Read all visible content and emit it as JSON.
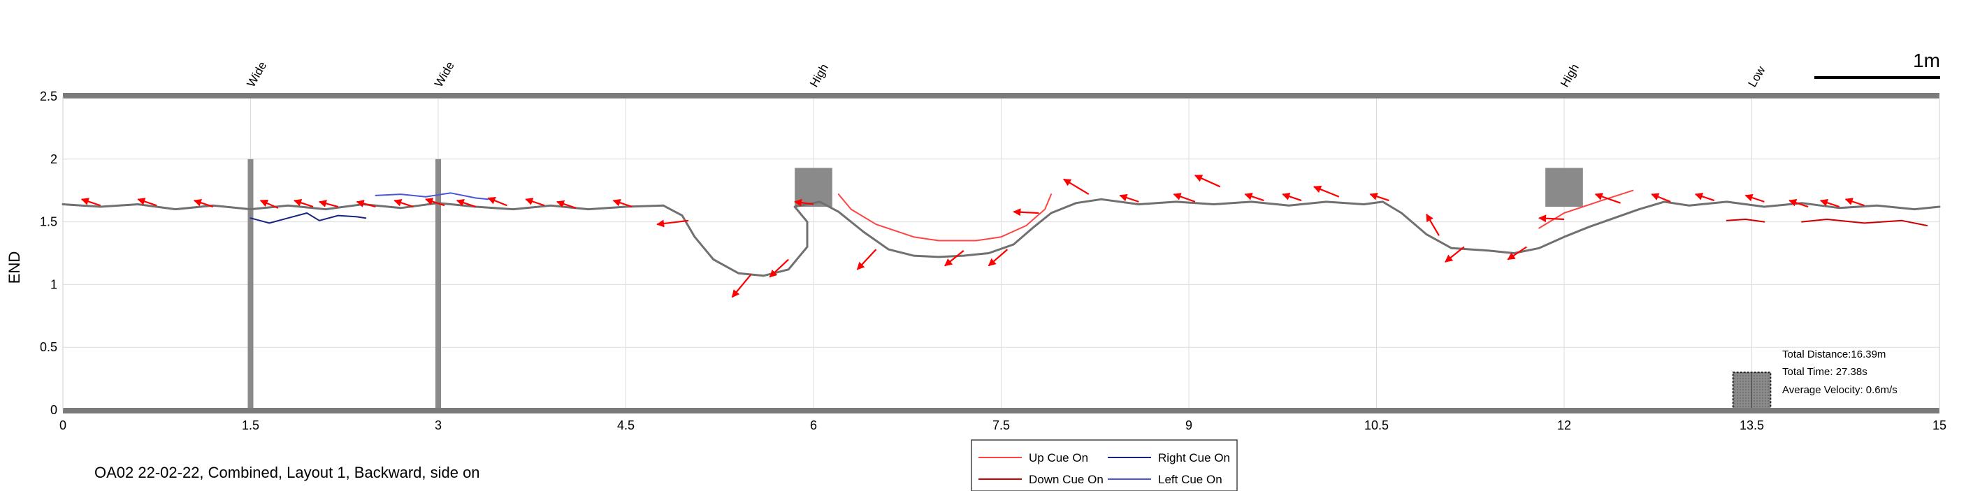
{
  "chart_data": {
    "type": "line",
    "title": "",
    "xlabel": "",
    "ylabel": "END",
    "xlim": [
      0,
      15
    ],
    "ylim": [
      0,
      2.5
    ],
    "xticks": [
      "0",
      "1.5",
      "3",
      "4.5",
      "6",
      "7.5",
      "9",
      "10.5",
      "12",
      "13.5",
      "15"
    ],
    "yticks": [
      "0",
      "0.5",
      "1",
      "1.5",
      "2",
      "2.5"
    ],
    "grid": true,
    "obstacles": [
      {
        "label": "Wide",
        "x": 1.5,
        "kind": "pole",
        "ymin": 0,
        "ymax": 2.0
      },
      {
        "label": "Wide",
        "x": 3.0,
        "kind": "pole",
        "ymin": 0,
        "ymax": 2.0
      },
      {
        "label": "High",
        "x": 6.0,
        "kind": "block",
        "xmin": 5.85,
        "xmax": 6.15,
        "ymin": 1.62,
        "ymax": 1.93
      },
      {
        "label": "High",
        "x": 12.0,
        "kind": "block",
        "xmin": 11.85,
        "xmax": 12.15,
        "ymin": 1.62,
        "ymax": 1.93
      },
      {
        "label": "Low",
        "x": 13.5,
        "kind": "low-block",
        "xmin": 13.35,
        "xmax": 13.65,
        "ymin": 0,
        "ymax": 0.3
      }
    ],
    "series": [
      {
        "name": "",
        "color": "#707070",
        "points": [
          [
            0,
            1.64
          ],
          [
            0.3,
            1.62
          ],
          [
            0.6,
            1.64
          ],
          [
            0.9,
            1.6
          ],
          [
            1.2,
            1.63
          ],
          [
            1.5,
            1.6
          ],
          [
            1.8,
            1.63
          ],
          [
            2.1,
            1.6
          ],
          [
            2.4,
            1.64
          ],
          [
            2.7,
            1.61
          ],
          [
            3.0,
            1.65
          ],
          [
            3.3,
            1.62
          ],
          [
            3.6,
            1.6
          ],
          [
            3.9,
            1.63
          ],
          [
            4.2,
            1.6
          ],
          [
            4.5,
            1.62
          ],
          [
            4.8,
            1.63
          ],
          [
            4.95,
            1.55
          ],
          [
            5.05,
            1.38
          ],
          [
            5.2,
            1.2
          ],
          [
            5.4,
            1.09
          ],
          [
            5.6,
            1.07
          ],
          [
            5.8,
            1.12
          ],
          [
            5.95,
            1.3
          ],
          [
            5.95,
            1.5
          ],
          [
            5.85,
            1.62
          ],
          [
            6.05,
            1.66
          ],
          [
            6.2,
            1.58
          ],
          [
            6.4,
            1.42
          ],
          [
            6.6,
            1.28
          ],
          [
            6.8,
            1.23
          ],
          [
            7.0,
            1.22
          ],
          [
            7.2,
            1.23
          ],
          [
            7.4,
            1.25
          ],
          [
            7.6,
            1.32
          ],
          [
            7.75,
            1.45
          ],
          [
            7.9,
            1.57
          ],
          [
            8.1,
            1.65
          ],
          [
            8.3,
            1.68
          ],
          [
            8.6,
            1.64
          ],
          [
            8.9,
            1.66
          ],
          [
            9.2,
            1.64
          ],
          [
            9.5,
            1.66
          ],
          [
            9.8,
            1.63
          ],
          [
            10.1,
            1.66
          ],
          [
            10.4,
            1.64
          ],
          [
            10.55,
            1.66
          ],
          [
            10.7,
            1.57
          ],
          [
            10.9,
            1.4
          ],
          [
            11.1,
            1.29
          ],
          [
            11.4,
            1.27
          ],
          [
            11.6,
            1.25
          ],
          [
            11.8,
            1.29
          ],
          [
            12.0,
            1.38
          ],
          [
            12.2,
            1.46
          ],
          [
            12.4,
            1.53
          ],
          [
            12.6,
            1.6
          ],
          [
            12.8,
            1.66
          ],
          [
            13.0,
            1.63
          ],
          [
            13.3,
            1.66
          ],
          [
            13.6,
            1.62
          ],
          [
            13.9,
            1.65
          ],
          [
            14.2,
            1.61
          ],
          [
            14.5,
            1.63
          ],
          [
            14.8,
            1.6
          ],
          [
            15.0,
            1.62
          ]
        ]
      },
      {
        "name": "Up Cue On",
        "color": "#ff4444",
        "points": [
          [
            6.2,
            1.72
          ],
          [
            6.3,
            1.6
          ],
          [
            6.5,
            1.48
          ],
          [
            6.8,
            1.38
          ],
          [
            7.0,
            1.35
          ],
          [
            7.3,
            1.35
          ],
          [
            7.5,
            1.38
          ],
          [
            7.7,
            1.47
          ],
          [
            7.85,
            1.6
          ],
          [
            7.9,
            1.72
          ]
        ]
      },
      {
        "name": "Up Cue On",
        "color": "#ff4444",
        "points": [
          [
            11.8,
            1.45
          ],
          [
            12.0,
            1.57
          ],
          [
            12.3,
            1.67
          ],
          [
            12.55,
            1.75
          ]
        ]
      },
      {
        "name": "Down Cue On",
        "color": "#cc0000",
        "points": [
          [
            13.3,
            1.51
          ],
          [
            13.45,
            1.52
          ],
          [
            13.6,
            1.5
          ]
        ]
      },
      {
        "name": "Down Cue On",
        "color": "#cc0000",
        "points": [
          [
            13.9,
            1.5
          ],
          [
            14.1,
            1.52
          ],
          [
            14.4,
            1.49
          ],
          [
            14.7,
            1.51
          ],
          [
            14.9,
            1.47
          ]
        ]
      },
      {
        "name": "Right Cue On",
        "color": "#1a237e",
        "points": [
          [
            1.5,
            1.53
          ],
          [
            1.65,
            1.49
          ],
          [
            1.8,
            1.53
          ],
          [
            1.95,
            1.57
          ],
          [
            2.05,
            1.51
          ],
          [
            2.2,
            1.55
          ],
          [
            2.35,
            1.54
          ],
          [
            2.42,
            1.53
          ]
        ]
      },
      {
        "name": "Left Cue On",
        "color": "#4a56d8",
        "points": [
          [
            2.5,
            1.71
          ],
          [
            2.7,
            1.72
          ],
          [
            2.9,
            1.7
          ],
          [
            3.1,
            1.73
          ],
          [
            3.3,
            1.69
          ],
          [
            3.4,
            1.68
          ]
        ]
      }
    ],
    "arrows": [
      [
        0.3,
        1.63,
        0.15,
        1.68
      ],
      [
        0.75,
        1.63,
        0.6,
        1.68
      ],
      [
        1.2,
        1.62,
        1.05,
        1.67
      ],
      [
        1.72,
        1.61,
        1.58,
        1.67
      ],
      [
        2.0,
        1.62,
        1.85,
        1.67
      ],
      [
        2.2,
        1.62,
        2.05,
        1.66
      ],
      [
        2.5,
        1.62,
        2.35,
        1.66
      ],
      [
        2.8,
        1.62,
        2.65,
        1.67
      ],
      [
        3.05,
        1.63,
        2.9,
        1.68
      ],
      [
        3.3,
        1.62,
        3.15,
        1.67
      ],
      [
        3.55,
        1.63,
        3.4,
        1.69
      ],
      [
        3.85,
        1.63,
        3.7,
        1.68
      ],
      [
        4.1,
        1.61,
        3.95,
        1.66
      ],
      [
        4.55,
        1.62,
        4.4,
        1.67
      ],
      [
        5.0,
        1.51,
        4.75,
        1.48
      ],
      [
        6.0,
        1.64,
        5.85,
        1.66
      ],
      [
        5.8,
        1.2,
        5.65,
        1.06
      ],
      [
        5.5,
        1.08,
        5.35,
        0.9
      ],
      [
        6.5,
        1.28,
        6.35,
        1.12
      ],
      [
        7.2,
        1.27,
        7.05,
        1.15
      ],
      [
        7.55,
        1.28,
        7.4,
        1.15
      ],
      [
        7.8,
        1.57,
        7.6,
        1.58
      ],
      [
        8.2,
        1.72,
        8.0,
        1.84
      ],
      [
        8.6,
        1.66,
        8.45,
        1.71
      ],
      [
        9.05,
        1.66,
        8.88,
        1.72
      ],
      [
        9.25,
        1.78,
        9.05,
        1.87
      ],
      [
        9.6,
        1.67,
        9.45,
        1.72
      ],
      [
        9.9,
        1.67,
        9.75,
        1.72
      ],
      [
        10.2,
        1.7,
        10.0,
        1.78
      ],
      [
        10.6,
        1.67,
        10.45,
        1.72
      ],
      [
        11.0,
        1.39,
        10.9,
        1.56
      ],
      [
        11.2,
        1.3,
        11.05,
        1.18
      ],
      [
        11.7,
        1.3,
        11.55,
        1.2
      ],
      [
        12.0,
        1.52,
        11.8,
        1.53
      ],
      [
        12.45,
        1.65,
        12.25,
        1.72
      ],
      [
        12.85,
        1.66,
        12.7,
        1.72
      ],
      [
        13.2,
        1.67,
        13.05,
        1.72
      ],
      [
        13.6,
        1.66,
        13.45,
        1.71
      ],
      [
        13.95,
        1.62,
        13.8,
        1.67
      ],
      [
        14.2,
        1.62,
        14.05,
        1.67
      ],
      [
        14.4,
        1.63,
        14.25,
        1.68
      ]
    ],
    "stats": {
      "distance": "Total Distance:16.39m",
      "time": "Total Time: 27.38s",
      "velocity": "Average Velocity: 0.6m/s"
    },
    "scale_bar": {
      "label": "1m",
      "meters": 1
    },
    "legend": [
      {
        "label": "Up Cue On",
        "color": "#ff4444"
      },
      {
        "label": "Right Cue On",
        "color": "#1a237e"
      },
      {
        "label": "Down Cue On",
        "color": "#cc0000"
      },
      {
        "label": "Left Cue On",
        "color": "#4a56d8"
      }
    ],
    "caption": "OA02 22-02-22, Combined, Layout 1, Backward, side on"
  },
  "colors": {
    "path": "#707070",
    "arrow": "#ff0000",
    "obstacle": "#8a8a8a",
    "axis": "#7a7a7a",
    "grid": "#dcdcdc"
  }
}
